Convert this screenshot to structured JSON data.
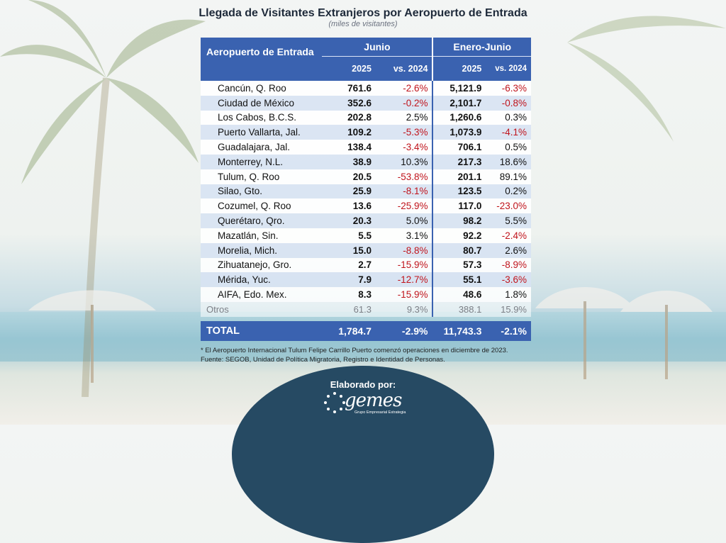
{
  "title": "Llegada de Visitantes Extranjeros por Aeropuerto de Entrada",
  "subtitle": "(miles de visitantes)",
  "table": {
    "header_airport": "Aeropuerto de Entrada",
    "group_june": "Junio",
    "group_ytd": "Enero-Junio",
    "col_2025": "2025",
    "col_vs2024": "vs. 2024",
    "col_vs2024_ytd": "vs. 2024",
    "rows": [
      {
        "airport": "Cancún, Q. Roo",
        "jun_2025": "761.6",
        "jun_vs": "-2.6%",
        "ytd_2025": "5,121.9",
        "ytd_vs": "-6.3%"
      },
      {
        "airport": "Ciudad de México",
        "jun_2025": "352.6",
        "jun_vs": "-0.2%",
        "ytd_2025": "2,101.7",
        "ytd_vs": "-0.8%"
      },
      {
        "airport": "Los Cabos, B.C.S.",
        "jun_2025": "202.8",
        "jun_vs": "2.5%",
        "ytd_2025": "1,260.6",
        "ytd_vs": "0.3%"
      },
      {
        "airport": "Puerto Vallarta, Jal.",
        "jun_2025": "109.2",
        "jun_vs": "-5.3%",
        "ytd_2025": "1,073.9",
        "ytd_vs": "-4.1%"
      },
      {
        "airport": "Guadalajara, Jal.",
        "jun_2025": "138.4",
        "jun_vs": "-3.4%",
        "ytd_2025": "706.1",
        "ytd_vs": "0.5%"
      },
      {
        "airport": "Monterrey, N.L.",
        "jun_2025": "38.9",
        "jun_vs": "10.3%",
        "ytd_2025": "217.3",
        "ytd_vs": "18.6%"
      },
      {
        "airport": "Tulum, Q. Roo",
        "jun_2025": "20.5",
        "jun_vs": "-53.8%",
        "ytd_2025": "201.1",
        "ytd_vs": "89.1%"
      },
      {
        "airport": "Silao, Gto.",
        "jun_2025": "25.9",
        "jun_vs": "-8.1%",
        "ytd_2025": "123.5",
        "ytd_vs": "0.2%"
      },
      {
        "airport": "Cozumel, Q. Roo",
        "jun_2025": "13.6",
        "jun_vs": "-25.9%",
        "ytd_2025": "117.0",
        "ytd_vs": "-23.0%"
      },
      {
        "airport": "Querétaro, Qro.",
        "jun_2025": "20.3",
        "jun_vs": "5.0%",
        "ytd_2025": "98.2",
        "ytd_vs": "5.5%"
      },
      {
        "airport": "Mazatlán, Sin.",
        "jun_2025": "5.5",
        "jun_vs": "3.1%",
        "ytd_2025": "92.2",
        "ytd_vs": "-2.4%"
      },
      {
        "airport": "Morelia, Mich.",
        "jun_2025": "15.0",
        "jun_vs": "-8.8%",
        "ytd_2025": "80.7",
        "ytd_vs": "2.6%"
      },
      {
        "airport": "Zihuatanejo, Gro.",
        "jun_2025": "2.7",
        "jun_vs": "-15.9%",
        "ytd_2025": "57.3",
        "ytd_vs": "-8.9%"
      },
      {
        "airport": "Mérida, Yuc.",
        "jun_2025": "7.9",
        "jun_vs": "-12.7%",
        "ytd_2025": "55.1",
        "ytd_vs": "-3.6%"
      },
      {
        "airport": "AIFA, Edo. Mex.",
        "jun_2025": "8.3",
        "jun_vs": "-15.9%",
        "ytd_2025": "48.6",
        "ytd_vs": "1.8%"
      }
    ],
    "otros": {
      "airport": "Otros",
      "jun_2025": "61.3",
      "jun_vs": "9.3%",
      "ytd_2025": "388.1",
      "ytd_vs": "15.9%"
    },
    "total": {
      "airport": "TOTAL",
      "jun_2025": "1,784.7",
      "jun_vs": "-2.9%",
      "ytd_2025": "11,743.3",
      "ytd_vs": "-2.1%"
    }
  },
  "notes": {
    "note1": "* El Aeropuerto Internacional Tulum Felipe Carrillo Puerto comenzó operaciones en diciembre de 2023.",
    "note2": "Fuente: SEGOB, Unidad de Política Migratoria, Registro e Identidad de Personas."
  },
  "footer": {
    "label": "Elaborado por:",
    "logo_text": "gemes",
    "logo_tagline": "Grupo Empresarial Estrategia"
  },
  "colors": {
    "header_blue": "#3a62b0",
    "negative_red": "#c0141c",
    "footer_navy": "#264a63"
  }
}
